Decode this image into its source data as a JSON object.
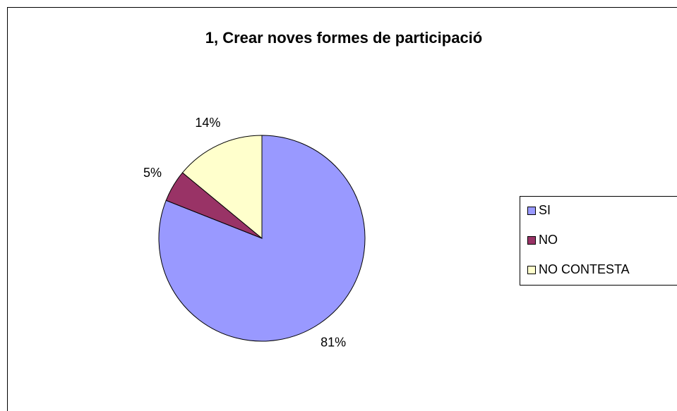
{
  "chart_data": {
    "type": "pie",
    "title": "1, Crear noves formes de participació",
    "categories": [
      "SI",
      "NO",
      "NO CONTESTA"
    ],
    "values": [
      81,
      5,
      14
    ],
    "value_labels": [
      "81%",
      "5%",
      "14%"
    ],
    "colors": [
      "#9999ff",
      "#993366",
      "#ffffcc"
    ],
    "legend": "right"
  }
}
